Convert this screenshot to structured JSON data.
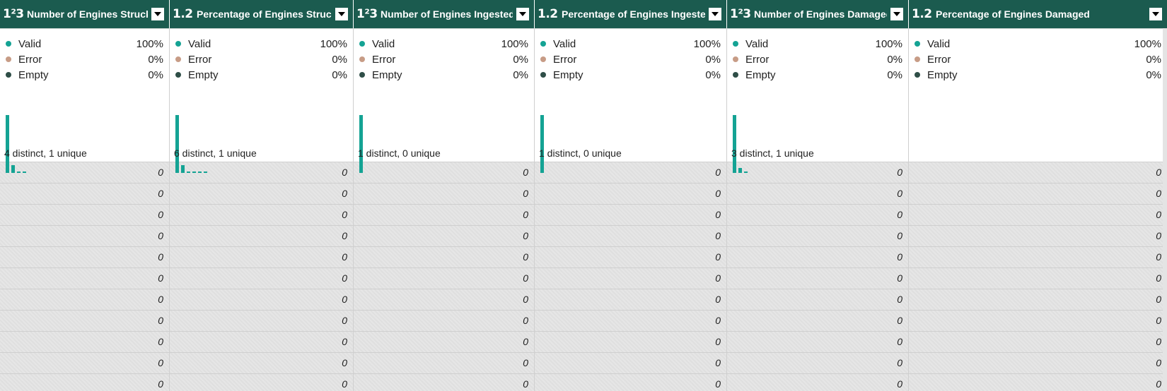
{
  "columns": [
    {
      "type_icon": "1²3",
      "title": "Number of Engines Struck",
      "quality": {
        "valid_label": "Valid",
        "valid_pct": "100%",
        "error_label": "Error",
        "error_pct": "0%",
        "empty_label": "Empty",
        "empty_pct": "0%"
      },
      "histogram": [
        1.0,
        0.14,
        0.03,
        0.03
      ],
      "distinct_text": "4 distinct, 1 unique",
      "values": [
        "0",
        "0",
        "0",
        "0",
        "0",
        "0",
        "0",
        "0",
        "0",
        "0",
        "0"
      ]
    },
    {
      "type_icon": "1.2",
      "title": "Percentage of Engines Struck",
      "quality": {
        "valid_label": "Valid",
        "valid_pct": "100%",
        "error_label": "Error",
        "error_pct": "0%",
        "empty_label": "Empty",
        "empty_pct": "0%"
      },
      "histogram": [
        1.0,
        0.13,
        0.03,
        0.03,
        0.03,
        0.03
      ],
      "distinct_text": "6 distinct, 1 unique",
      "values": [
        "0",
        "0",
        "0",
        "0",
        "0",
        "0",
        "0",
        "0",
        "0",
        "0",
        "0"
      ]
    },
    {
      "type_icon": "1²3",
      "title": "Number of Engines Ingested",
      "quality": {
        "valid_label": "Valid",
        "valid_pct": "100%",
        "error_label": "Error",
        "error_pct": "0%",
        "empty_label": "Empty",
        "empty_pct": "0%"
      },
      "histogram": [
        1.0
      ],
      "distinct_text": "1 distinct, 0 unique",
      "values": [
        "0",
        "0",
        "0",
        "0",
        "0",
        "0",
        "0",
        "0",
        "0",
        "0",
        "0"
      ]
    },
    {
      "type_icon": "1.2",
      "title": "Percentage of Engines Ingested",
      "quality": {
        "valid_label": "Valid",
        "valid_pct": "100%",
        "error_label": "Error",
        "error_pct": "0%",
        "empty_label": "Empty",
        "empty_pct": "0%"
      },
      "histogram": [
        1.0
      ],
      "distinct_text": "1 distinct, 0 unique",
      "values": [
        "0",
        "0",
        "0",
        "0",
        "0",
        "0",
        "0",
        "0",
        "0",
        "0",
        "0"
      ]
    },
    {
      "type_icon": "1²3",
      "title": "Number of Engines Damaged",
      "quality": {
        "valid_label": "Valid",
        "valid_pct": "100%",
        "error_label": "Error",
        "error_pct": "0%",
        "empty_label": "Empty",
        "empty_pct": "0%"
      },
      "histogram": [
        1.0,
        0.08,
        0.03
      ],
      "distinct_text": "3 distinct, 1 unique",
      "values": [
        "0",
        "0",
        "0",
        "0",
        "0",
        "0",
        "0",
        "0",
        "0",
        "0",
        "0"
      ]
    },
    {
      "type_icon": "1.2",
      "title": "Percentage of Engines Damaged",
      "quality": {
        "valid_label": "Valid",
        "valid_pct": "100%",
        "error_label": "Error",
        "error_pct": "0%",
        "empty_label": "Empty",
        "empty_pct": "0%"
      },
      "histogram": [],
      "distinct_text": "",
      "values": [
        "0",
        "0",
        "0",
        "0",
        "0",
        "0",
        "0",
        "0",
        "0",
        "0",
        "0"
      ]
    }
  ],
  "colors": {
    "header_bg": "#1b5b4f",
    "valid": "#14a394",
    "error": "#c79c86",
    "empty": "#2f4e47",
    "row_bg": "#e3e3e3"
  },
  "icons": {
    "dropdown": "chevron-down-icon"
  }
}
